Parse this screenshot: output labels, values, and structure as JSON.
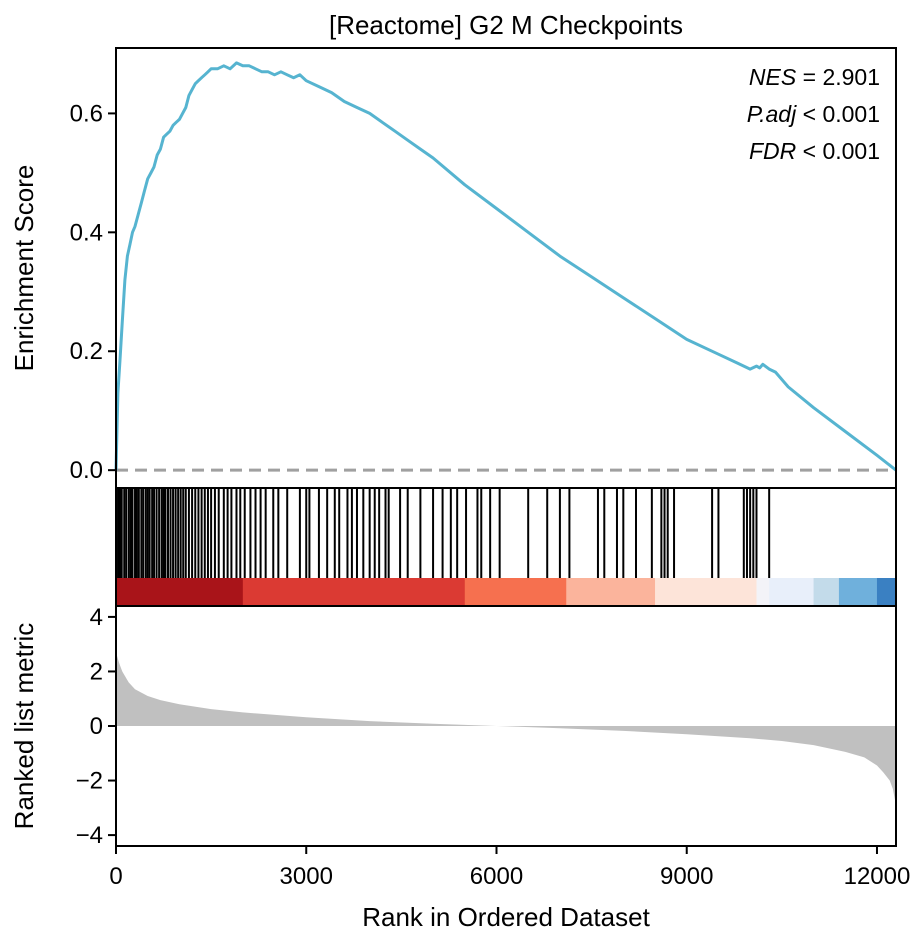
{
  "chart_data": {
    "type": "line",
    "title": "[Reactome] G2 M Checkpoints",
    "xlabel": "Rank in Ordered Dataset",
    "ylabel_top": "Enrichment Score",
    "ylabel_bottom": "Ranked list metric",
    "xlim": [
      0,
      12300
    ],
    "xticks": [
      0,
      3000,
      6000,
      9000,
      12000
    ],
    "xtick_labels": [
      "0",
      "3000",
      "6000",
      "9000",
      "12000"
    ],
    "enrichment": {
      "ylim": [
        -0.03,
        0.71
      ],
      "yticks": [
        0.0,
        0.2,
        0.4,
        0.6
      ],
      "ytick_labels": [
        "0.0",
        "0.2",
        "0.4",
        "0.6"
      ],
      "line_color": "#56b4d0",
      "baseline": 0.0,
      "baseline_color": "#a0a0a0",
      "series": {
        "x": [
          0,
          30,
          60,
          100,
          140,
          180,
          220,
          260,
          300,
          350,
          400,
          450,
          500,
          550,
          600,
          650,
          700,
          750,
          800,
          850,
          900,
          950,
          1000,
          1050,
          1100,
          1150,
          1200,
          1250,
          1300,
          1350,
          1400,
          1450,
          1500,
          1600,
          1700,
          1800,
          1900,
          2000,
          2100,
          2200,
          2300,
          2400,
          2500,
          2600,
          2700,
          2800,
          2900,
          3000,
          3200,
          3400,
          3600,
          3800,
          4000,
          4200,
          4400,
          4600,
          4800,
          5000,
          5500,
          6000,
          6500,
          7000,
          7500,
          8000,
          8500,
          9000,
          9500,
          9800,
          10000,
          10100,
          10150,
          10200,
          10300,
          10400,
          10600,
          11000,
          11500,
          12000,
          12300
        ],
        "y": [
          0.0,
          0.13,
          0.18,
          0.25,
          0.32,
          0.36,
          0.38,
          0.4,
          0.41,
          0.43,
          0.45,
          0.47,
          0.49,
          0.5,
          0.51,
          0.53,
          0.54,
          0.56,
          0.565,
          0.57,
          0.58,
          0.585,
          0.59,
          0.6,
          0.61,
          0.63,
          0.64,
          0.65,
          0.655,
          0.66,
          0.665,
          0.67,
          0.675,
          0.675,
          0.68,
          0.675,
          0.685,
          0.68,
          0.68,
          0.675,
          0.67,
          0.67,
          0.665,
          0.67,
          0.665,
          0.66,
          0.665,
          0.655,
          0.645,
          0.635,
          0.62,
          0.61,
          0.6,
          0.585,
          0.57,
          0.555,
          0.54,
          0.525,
          0.48,
          0.44,
          0.4,
          0.36,
          0.325,
          0.29,
          0.255,
          0.22,
          0.195,
          0.18,
          0.17,
          0.175,
          0.172,
          0.178,
          0.17,
          0.165,
          0.14,
          0.105,
          0.065,
          0.025,
          0.0
        ]
      }
    },
    "hits": [
      10,
      40,
      70,
      90,
      130,
      160,
      200,
      230,
      260,
      300,
      330,
      360,
      400,
      430,
      470,
      500,
      530,
      570,
      600,
      640,
      680,
      720,
      750,
      780,
      820,
      860,
      900,
      940,
      980,
      1020,
      1060,
      1100,
      1150,
      1200,
      1250,
      1300,
      1350,
      1400,
      1450,
      1500,
      1560,
      1620,
      1700,
      1760,
      1820,
      1900,
      1960,
      2030,
      2120,
      2200,
      2280,
      2360,
      2480,
      2560,
      2700,
      2900,
      3000,
      3050,
      3200,
      3330,
      3450,
      3520,
      3650,
      3720,
      3800,
      3900,
      4000,
      4080,
      4150,
      4250,
      4300,
      4480,
      4600,
      4800,
      5000,
      5150,
      5280,
      5380,
      5520,
      5700,
      5760,
      5900,
      6050,
      6500,
      6800,
      7000,
      7150,
      7600,
      7700,
      7900,
      8000,
      8200,
      8450,
      8600,
      8650,
      8700,
      8800,
      9400,
      9500,
      9900,
      9950,
      10000,
      10050,
      10100,
      10300
    ],
    "colorbar": {
      "segments": [
        {
          "start": 0,
          "end": 2000,
          "color": "#a91419"
        },
        {
          "start": 2000,
          "end": 5500,
          "color": "#db3a33"
        },
        {
          "start": 5500,
          "end": 7100,
          "color": "#f6704f"
        },
        {
          "start": 7100,
          "end": 8500,
          "color": "#fbb49c"
        },
        {
          "start": 8500,
          "end": 10100,
          "color": "#fde4d9"
        },
        {
          "start": 10100,
          "end": 10300,
          "color": "#f3f3f8"
        },
        {
          "start": 10300,
          "end": 11000,
          "color": "#e8effa"
        },
        {
          "start": 11000,
          "end": 11400,
          "color": "#c3dbea"
        },
        {
          "start": 11400,
          "end": 12000,
          "color": "#6fb0dc"
        },
        {
          "start": 12000,
          "end": 12300,
          "color": "#3a80c2"
        }
      ]
    },
    "ranked_metric": {
      "ylim": [
        -4.4,
        4.4
      ],
      "yticks": [
        -4,
        -2,
        0,
        2,
        4
      ],
      "ytick_labels": [
        "−4",
        "−2",
        "0",
        "2",
        "4"
      ],
      "fill_color": "#c0c0c0",
      "x": [
        0,
        50,
        100,
        200,
        300,
        500,
        700,
        1000,
        1500,
        2000,
        3000,
        4000,
        5000,
        6000,
        7000,
        8000,
        9000,
        10000,
        10500,
        11000,
        11500,
        11800,
        12000,
        12100,
        12200,
        12250,
        12300
      ],
      "y": [
        2.7,
        2.3,
        2.0,
        1.6,
        1.35,
        1.1,
        0.95,
        0.8,
        0.62,
        0.5,
        0.32,
        0.18,
        0.08,
        0.0,
        -0.08,
        -0.18,
        -0.3,
        -0.45,
        -0.55,
        -0.7,
        -0.95,
        -1.15,
        -1.45,
        -1.7,
        -2.0,
        -2.3,
        -2.9
      ]
    },
    "stats": [
      {
        "label": "NES",
        "op": "=",
        "value": "2.901"
      },
      {
        "label": "P.adj",
        "op": "<",
        "value": "0.001"
      },
      {
        "label": "FDR",
        "op": "<",
        "value": "0.001"
      }
    ]
  }
}
